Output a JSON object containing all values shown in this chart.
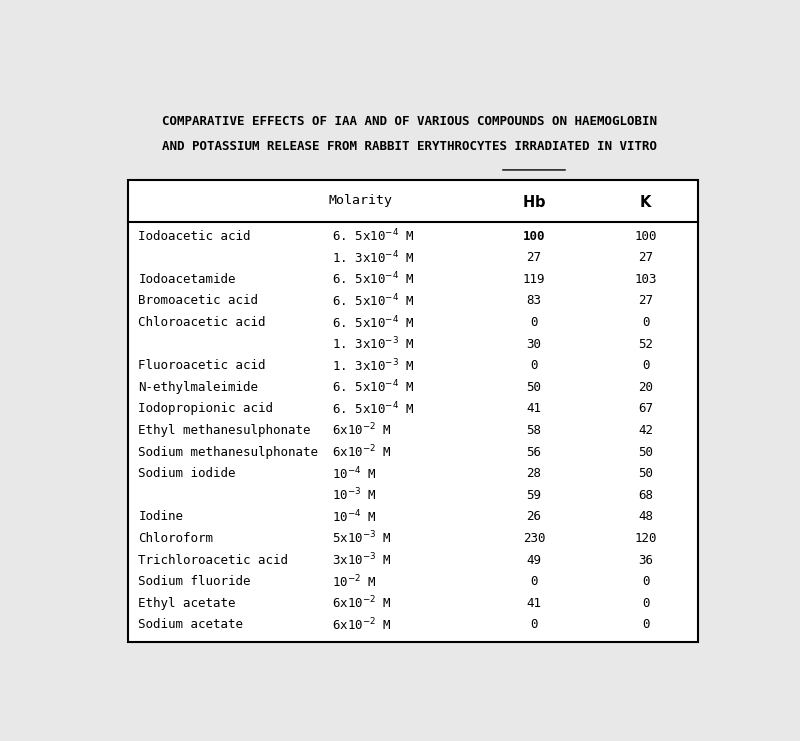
{
  "title_line1": "COMPARATIVE EFFECTS OF IAA AND OF VARIOUS COMPOUNDS ON HAEMOGLOBIN",
  "title_line2": "AND POTASSIUM RELEASE FROM RABBIT ERYTHROCYTES IRRADIATED ",
  "title_underline": "IN VITRO",
  "bg_color": "#e8e8e8",
  "table_bg": "#f8f8f8",
  "rows": [
    [
      "Iodoacetic acid",
      "6. 5x10$^{-4}$ M",
      "100",
      "100",
      true
    ],
    [
      "",
      "1. 3x10$^{-4}$ M",
      "27",
      "27",
      false
    ],
    [
      "Iodoacetamide",
      "6. 5x10$^{-4}$ M",
      "119",
      "103",
      false
    ],
    [
      "Bromoacetic acid",
      "6. 5x10$^{-4}$ M",
      "83",
      "27",
      false
    ],
    [
      "Chloroacetic acid",
      "6. 5x10$^{-4}$ M",
      "0",
      "0",
      false
    ],
    [
      "",
      "1. 3x10$^{-3}$ M",
      "30",
      "52",
      false
    ],
    [
      "Fluoroacetic acid",
      "1. 3x10$^{-3}$ M",
      "0",
      "0",
      false
    ],
    [
      "N-ethylmaleimide",
      "6. 5x10$^{-4}$ M",
      "50",
      "20",
      false
    ],
    [
      "Iodopropionic acid",
      "6. 5x10$^{-4}$ M",
      "41",
      "67",
      false
    ],
    [
      "Ethyl methanesulphonate",
      "6x10$^{-2}$ M",
      "58",
      "42",
      false
    ],
    [
      "Sodium methanesulphonate",
      "6x10$^{-2}$ M",
      "56",
      "50",
      false
    ],
    [
      "Sodium iodide",
      "10$^{-4}$ M",
      "28",
      "50",
      false
    ],
    [
      "",
      "10$^{-3}$ M",
      "59",
      "68",
      false
    ],
    [
      "Iodine",
      "10$^{-4}$ M",
      "26",
      "48",
      false
    ],
    [
      "Chloroform",
      "5x10$^{-3}$ M",
      "230",
      "120",
      false
    ],
    [
      "Trichloroacetic acid",
      "3x10$^{-3}$ M",
      "49",
      "36",
      false
    ],
    [
      "Sodium fluoride",
      "10$^{-2}$ M",
      "0",
      "0",
      false
    ],
    [
      "Ethyl acetate",
      "6x10$^{-2}$ M",
      "41",
      "0",
      false
    ],
    [
      "Sodium acetate",
      "6x10$^{-2}$ M",
      "0",
      "0",
      false
    ]
  ],
  "font_size_title": 9.0,
  "font_size_header": 9.5,
  "font_size_body": 9.0
}
